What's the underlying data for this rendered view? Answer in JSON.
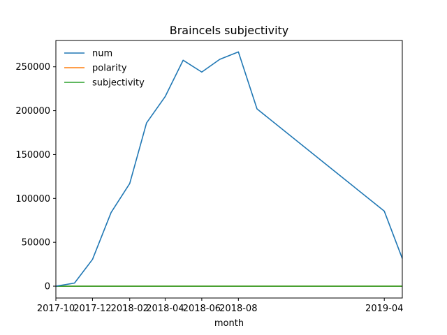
{
  "chart_data": {
    "type": "line",
    "title": "Braincels subjectivity",
    "xlabel": "month",
    "ylabel": "",
    "x": [
      "2017-10",
      "2017-11",
      "2017-12",
      "2018-01",
      "2018-02",
      "2018-03",
      "2018-04",
      "2018-05",
      "2018-06",
      "2018-07",
      "2018-08",
      "2018-09",
      "2018-10",
      "2018-11",
      "2018-12",
      "2019-01",
      "2019-02",
      "2019-03",
      "2019-04",
      "2019-05"
    ],
    "x_tick_labels": [
      "2017-10",
      "2017-12",
      "2018-02",
      "2018-04",
      "2018-06",
      "2018-08",
      "2019-04"
    ],
    "y_tick_labels": [
      "0",
      "50000",
      "100000",
      "150000",
      "200000",
      "250000"
    ],
    "y_ticks": [
      0,
      50000,
      100000,
      150000,
      200000,
      250000
    ],
    "ylim": [
      -13500,
      280000
    ],
    "grid": false,
    "legend_position": "upper-left",
    "series": [
      {
        "name": "num",
        "color": "#1f77b4",
        "points": [
          [
            "2017-10",
            0
          ],
          [
            "2017-11",
            3500
          ],
          [
            "2017-12",
            30500
          ],
          [
            "2018-01",
            84000
          ],
          [
            "2018-02",
            117000
          ],
          [
            "2018-03",
            186000
          ],
          [
            "2018-04",
            216000
          ],
          [
            "2018-05",
            257500
          ],
          [
            "2018-06",
            244000
          ],
          [
            "2018-07",
            258500
          ],
          [
            "2018-08",
            267000
          ],
          [
            "2018-09",
            202000
          ],
          [
            "2019-04",
            85500
          ],
          [
            "2019-05",
            31500
          ]
        ]
      },
      {
        "name": "polarity",
        "color": "#ff7f0e",
        "points": [
          [
            "2017-10",
            0.05
          ],
          [
            "2017-11",
            0.05
          ],
          [
            "2017-12",
            0.05
          ],
          [
            "2018-01",
            0.05
          ],
          [
            "2018-02",
            0.05
          ],
          [
            "2018-03",
            0.05
          ],
          [
            "2018-04",
            0.05
          ],
          [
            "2018-05",
            0.05
          ],
          [
            "2018-06",
            0.05
          ],
          [
            "2018-07",
            0.05
          ],
          [
            "2018-08",
            0.05
          ],
          [
            "2018-09",
            0.05
          ],
          [
            "2019-04",
            0.05
          ],
          [
            "2019-05",
            0.05
          ]
        ]
      },
      {
        "name": "subjectivity",
        "color": "#2ca02c",
        "points": [
          [
            "2017-10",
            0.5
          ],
          [
            "2017-11",
            0.5
          ],
          [
            "2017-12",
            0.5
          ],
          [
            "2018-01",
            0.5
          ],
          [
            "2018-02",
            0.5
          ],
          [
            "2018-03",
            0.5
          ],
          [
            "2018-04",
            0.5
          ],
          [
            "2018-05",
            0.5
          ],
          [
            "2018-06",
            0.5
          ],
          [
            "2018-07",
            0.5
          ],
          [
            "2018-08",
            0.5
          ],
          [
            "2018-09",
            0.5
          ],
          [
            "2019-04",
            0.5
          ],
          [
            "2019-05",
            0.5
          ]
        ]
      }
    ]
  }
}
